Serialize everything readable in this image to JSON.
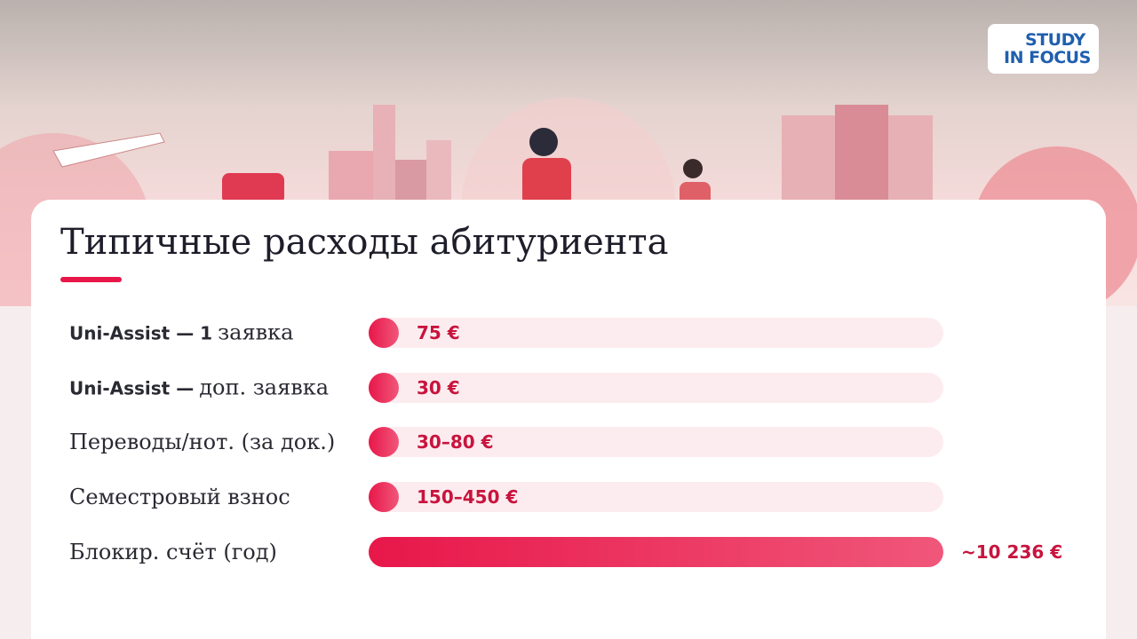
{
  "logo": {
    "line1": "STUDY",
    "line2": "IN FOCUS"
  },
  "title": "Типичные расходы абитуриента",
  "rows": [
    {
      "label": [
        "Uni-Assist — 1",
        "заявка"
      ],
      "value": "75 €"
    },
    {
      "label": [
        "Uni-Assist —",
        "доп. заявка"
      ],
      "value": "30 €"
    },
    {
      "label": [
        "",
        "Переводы/нот. (за док.)"
      ],
      "value": "30–80 €"
    },
    {
      "label": [
        "",
        "Семестровый взнос"
      ],
      "value": "150–450 €"
    },
    {
      "label": [
        "",
        "Блокир. счёт (год)"
      ],
      "value": "~10 236 €"
    }
  ]
}
